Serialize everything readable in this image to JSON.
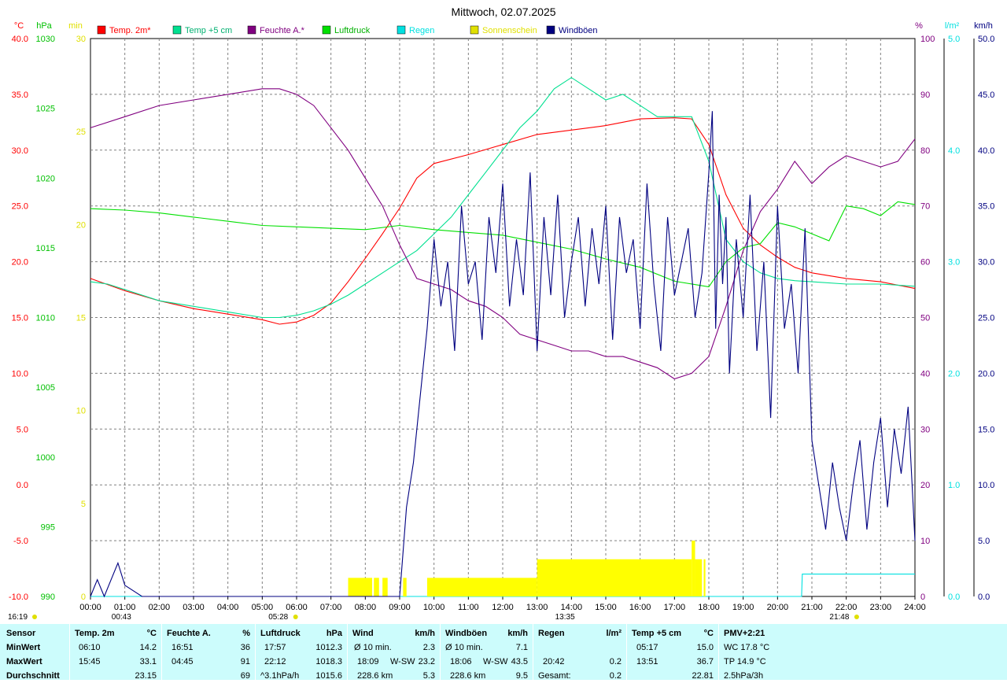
{
  "chart_data": {
    "type": "line",
    "title": "Mittwoch, 02.07.2025",
    "legend_position": "top",
    "grid": true,
    "x": {
      "range": [
        0,
        24
      ],
      "tick_labels": [
        "00:00",
        "01:00",
        "02:00",
        "03:00",
        "04:00",
        "05:00",
        "06:00",
        "07:00",
        "08:00",
        "09:00",
        "10:00",
        "11:00",
        "12:00",
        "13:00",
        "14:00",
        "15:00",
        "16:00",
        "17:00",
        "18:00",
        "19:00",
        "20:00",
        "21:00",
        "22:00",
        "23:00",
        "24:00"
      ]
    },
    "axes": {
      "temp": {
        "unit": "°C",
        "range": [
          -10,
          40
        ],
        "ticks": [
          "40.0",
          "35.0",
          "30.0",
          "25.0",
          "20.0",
          "15.0",
          "10.0",
          "5.0",
          "0.0",
          "-5.0",
          "-10.0"
        ],
        "color": "#ff0000"
      },
      "pressure": {
        "unit": "hPa",
        "range": [
          990,
          1030
        ],
        "ticks": [
          "1030",
          "1025",
          "1020",
          "1015",
          "1010",
          "1005",
          "1000",
          "995",
          "990"
        ],
        "color": "#00c000"
      },
      "sun": {
        "unit": "min",
        "range": [
          0,
          30
        ],
        "ticks": [
          "30",
          "25",
          "20",
          "15",
          "10",
          "5",
          "0"
        ],
        "color": "#e0e000"
      },
      "humidity": {
        "unit": "%",
        "range": [
          0,
          100
        ],
        "ticks": [
          "100",
          "90",
          "80",
          "70",
          "60",
          "50",
          "40",
          "30",
          "20",
          "10",
          "0"
        ],
        "color": "#800080"
      },
      "rain": {
        "unit": "l/m²",
        "range": [
          0,
          5
        ],
        "ticks": [
          "5.0",
          "4.0",
          "3.0",
          "2.0",
          "1.0",
          "0.0"
        ],
        "color": "#00e0e0"
      },
      "wind": {
        "unit": "km/h",
        "range": [
          0,
          50
        ],
        "ticks": [
          "50.0",
          "45.0",
          "40.0",
          "35.0",
          "30.0",
          "25.0",
          "20.0",
          "15.0",
          "10.0",
          "5.0",
          "0.0"
        ],
        "color": "#000080"
      }
    },
    "legend": [
      {
        "label": "Temp. 2m*",
        "color": "#ff0000"
      },
      {
        "label": "Temp +5 cm",
        "color": "#00e090"
      },
      {
        "label": "Feuchte A.*",
        "color": "#800080"
      },
      {
        "label": "Luftdruck",
        "color": "#00e000"
      },
      {
        "label": "Regen",
        "color": "#00e0e0"
      },
      {
        "label": "Sonnenschein",
        "color": "#e0e000"
      },
      {
        "label": "Windböen",
        "color": "#000080"
      }
    ],
    "series": [
      {
        "name": "Temp. 2m*",
        "axis": "temp",
        "color": "#ff0000",
        "x": [
          0,
          1,
          2,
          3,
          4,
          5,
          5.5,
          6,
          6.5,
          7,
          7.5,
          8,
          8.5,
          9,
          9.5,
          10,
          11,
          12,
          13,
          14,
          15,
          16,
          17,
          17.5,
          18,
          18.5,
          19,
          19.5,
          20,
          20.5,
          21,
          22,
          23,
          24
        ],
        "y": [
          18.5,
          17.4,
          16.5,
          15.8,
          15.3,
          14.8,
          14.4,
          14.6,
          15.2,
          16.3,
          18.2,
          20.3,
          22.5,
          24.8,
          27.5,
          28.8,
          29.6,
          30.5,
          31.4,
          31.8,
          32.2,
          32.8,
          32.9,
          32.8,
          30.5,
          26.0,
          23.0,
          21.5,
          20.4,
          19.5,
          19.0,
          18.5,
          18.2,
          17.6
        ]
      },
      {
        "name": "Temp +5 cm",
        "axis": "temp",
        "color": "#00e090",
        "x": [
          0,
          0.5,
          1,
          2,
          3,
          4,
          5,
          5.5,
          6,
          6.5,
          7,
          7.5,
          8,
          8.5,
          9,
          9.5,
          10,
          10.5,
          11,
          11.5,
          12,
          12.5,
          13,
          13.5,
          14,
          14.5,
          15,
          15.5,
          16,
          16.5,
          17,
          17.5,
          18,
          18.5,
          19,
          19.5,
          20,
          20.5,
          21,
          22,
          23,
          24
        ],
        "y": [
          18.2,
          18.0,
          17.5,
          16.5,
          16.0,
          15.5,
          15.0,
          15.0,
          15.2,
          15.6,
          16.2,
          17.0,
          18.0,
          19.0,
          20.0,
          21.0,
          22.5,
          24.0,
          26.0,
          28.0,
          30.0,
          32.0,
          33.5,
          35.5,
          36.5,
          35.5,
          34.5,
          35.0,
          34.0,
          33.0,
          33.0,
          33.0,
          29.0,
          22.0,
          20.0,
          19.0,
          18.5,
          18.3,
          18.2,
          18.0,
          18.0,
          17.8
        ]
      },
      {
        "name": "Feuchte A.*",
        "axis": "humidity",
        "color": "#800080",
        "x": [
          0,
          1,
          2,
          3,
          4,
          5,
          5.5,
          6,
          6.5,
          7,
          7.5,
          8,
          8.5,
          9,
          9.5,
          10,
          10.5,
          11,
          11.5,
          12,
          12.5,
          13,
          13.5,
          14,
          14.5,
          15,
          15.5,
          16,
          16.5,
          17,
          17.5,
          18,
          18.5,
          19,
          19.5,
          20,
          20.5,
          21,
          21.5,
          22,
          22.5,
          23,
          23.5,
          24
        ],
        "y": [
          84,
          86,
          88,
          89,
          90,
          91,
          91,
          90,
          88,
          84,
          80,
          75,
          70,
          63,
          57,
          56,
          55,
          53,
          52,
          50,
          47,
          46,
          45,
          44,
          44,
          43,
          43,
          42,
          41,
          39,
          40,
          43,
          52,
          62,
          69,
          73,
          78,
          74,
          77,
          79,
          78,
          77,
          78,
          82
        ]
      },
      {
        "name": "Luftdruck",
        "axis": "pressure",
        "color": "#00e000",
        "x": [
          0,
          1,
          2,
          3,
          4,
          5,
          6,
          7,
          8,
          9,
          10,
          11,
          12,
          13,
          14,
          15,
          16,
          17,
          18,
          18.5,
          19,
          19.5,
          20,
          20.5,
          21,
          21.5,
          22,
          22.5,
          23,
          23.5,
          24
        ],
        "y": [
          1017.8,
          1017.7,
          1017.5,
          1017.2,
          1016.9,
          1016.6,
          1016.5,
          1016.4,
          1016.3,
          1016.6,
          1016.3,
          1016.1,
          1015.9,
          1015.4,
          1014.9,
          1014.2,
          1013.6,
          1012.6,
          1012.2,
          1014.0,
          1015.0,
          1015.3,
          1016.8,
          1016.5,
          1016.0,
          1015.5,
          1018.0,
          1017.8,
          1017.3,
          1018.3,
          1018.1
        ]
      },
      {
        "name": "Regen",
        "axis": "rain",
        "color": "#00e0e0",
        "x": [
          0,
          20.7,
          20.72,
          24
        ],
        "y": [
          0,
          0,
          0.2,
          0.2
        ]
      },
      {
        "name": "Sonnenschein",
        "axis": "sun",
        "color": "#ffff00",
        "type": "bar",
        "intervals": [
          [
            7.5,
            8.2,
            1
          ],
          [
            8.25,
            8.4,
            1
          ],
          [
            8.5,
            8.65,
            1
          ],
          [
            9.1,
            9.2,
            1
          ],
          [
            9.8,
            13.0,
            1
          ],
          [
            13.0,
            17.5,
            2
          ],
          [
            17.5,
            17.6,
            3
          ],
          [
            17.6,
            17.8,
            2
          ],
          [
            17.85,
            17.9,
            2
          ]
        ]
      },
      {
        "name": "Windböen",
        "axis": "wind",
        "color": "#000080",
        "x": [
          0,
          0.2,
          0.4,
          0.6,
          0.8,
          1,
          1.5,
          2,
          3,
          4,
          5,
          6,
          7,
          8,
          9,
          9.2,
          9.4,
          9.6,
          9.8,
          10,
          10.2,
          10.4,
          10.6,
          10.8,
          11,
          11.2,
          11.4,
          11.6,
          11.8,
          12,
          12.2,
          12.4,
          12.6,
          12.8,
          13,
          13.2,
          13.4,
          13.6,
          13.8,
          14,
          14.2,
          14.4,
          14.6,
          14.8,
          15,
          15.2,
          15.4,
          15.6,
          15.8,
          16,
          16.2,
          16.4,
          16.6,
          16.8,
          17,
          17.2,
          17.4,
          17.6,
          17.8,
          18,
          18.1,
          18.2,
          18.3,
          18.4,
          18.5,
          18.6,
          18.8,
          19,
          19.2,
          19.4,
          19.6,
          19.8,
          20,
          20.2,
          20.4,
          20.6,
          20.8,
          21,
          21.2,
          21.4,
          21.6,
          21.8,
          22,
          22.2,
          22.4,
          22.6,
          22.8,
          23,
          23.2,
          23.4,
          23.6,
          23.8,
          24
        ],
        "y": [
          0,
          1.5,
          0,
          1.5,
          3,
          1,
          0,
          0,
          0,
          0,
          0,
          0,
          0,
          0,
          0,
          8,
          12,
          18,
          24,
          32,
          26,
          30,
          22,
          35,
          28,
          30,
          23,
          34,
          29,
          37,
          26,
          32,
          27,
          38,
          22,
          34,
          27,
          36,
          25,
          30,
          34,
          26,
          33,
          28,
          35,
          23,
          34,
          29,
          32,
          24,
          37,
          28,
          22,
          34,
          27,
          30,
          33,
          25,
          29,
          38,
          43.5,
          24,
          36,
          28,
          34,
          20,
          32,
          25,
          36,
          22,
          30,
          16,
          35,
          24,
          28,
          20,
          33,
          14,
          10,
          6,
          12,
          8,
          5,
          10,
          14,
          6,
          12,
          16,
          8,
          15,
          11,
          17,
          5
        ]
      }
    ]
  },
  "legend_labels": [
    "Temp. 2m*",
    "Temp +5 cm",
    "Feuchte A.*",
    "Luftdruck",
    "Regen",
    "Sonnenschein",
    "Windböen"
  ],
  "markers": {
    "bottom_left": "16:19",
    "sunrise": "05:28",
    "sunset": "21:48",
    "moon_1": "00:43",
    "moon_2": "13:35"
  },
  "stats": {
    "rowlabels": {
      "title": "Sensor",
      "min": "MinWert",
      "max": "MaxWert",
      "avg": "Durchschnitt"
    },
    "temp2m": {
      "title": "Temp. 2m",
      "unit": "°C",
      "min_time": "06:10",
      "min_val": "14.2",
      "max_time": "15:45",
      "max_val": "33.1",
      "avg": "23.15"
    },
    "feuchte": {
      "title": "Feuchte A.",
      "unit": "%",
      "min_time": "16:51",
      "min_val": "36",
      "max_time": "04:45",
      "max_val": "91",
      "avg": "69"
    },
    "luftdruck": {
      "title": "Luftdruck",
      "unit": "hPa",
      "min_time": "17:57",
      "min_val": "1012.3",
      "max_time": "22:12",
      "max_val": "1018.3",
      "trend": "^3.1hPa/h",
      "avg": "1015.6"
    },
    "wind": {
      "title": "Wind",
      "unit": "km/h",
      "r1_label": "Ø 10 min.",
      "r1_val": "2.3",
      "r2_time": "18:09",
      "r2_dir": "W-SW",
      "r2_val": "23.2",
      "r3_dist": "228.6 km",
      "r3_val": "5.3"
    },
    "boen": {
      "title": "Windböen",
      "unit": "km/h",
      "r1_label": "Ø 10 min.",
      "r1_val": "7.1",
      "r2_time": "18:06",
      "r2_dir": "W-SW",
      "r2_val": "43.5",
      "r3_dist": "228.6 km",
      "r3_val": "9.5"
    },
    "regen": {
      "title": "Regen",
      "unit": "l/m²",
      "max_time": "20:42",
      "max_val": "0.2",
      "total_label": "Gesamt:",
      "total_val": "0.2"
    },
    "temp5": {
      "title": "Temp +5 cm",
      "unit": "°C",
      "min_time": "05:17",
      "min_val": "15.0",
      "max_time": "13:51",
      "max_val": "36.7",
      "avg": "22.81"
    },
    "pmv": {
      "title": "PMV+2:21",
      "r1": "WC 17.8 °C",
      "r2": "TP 14.9 °C",
      "r3": "2.5hPa/3h"
    }
  }
}
